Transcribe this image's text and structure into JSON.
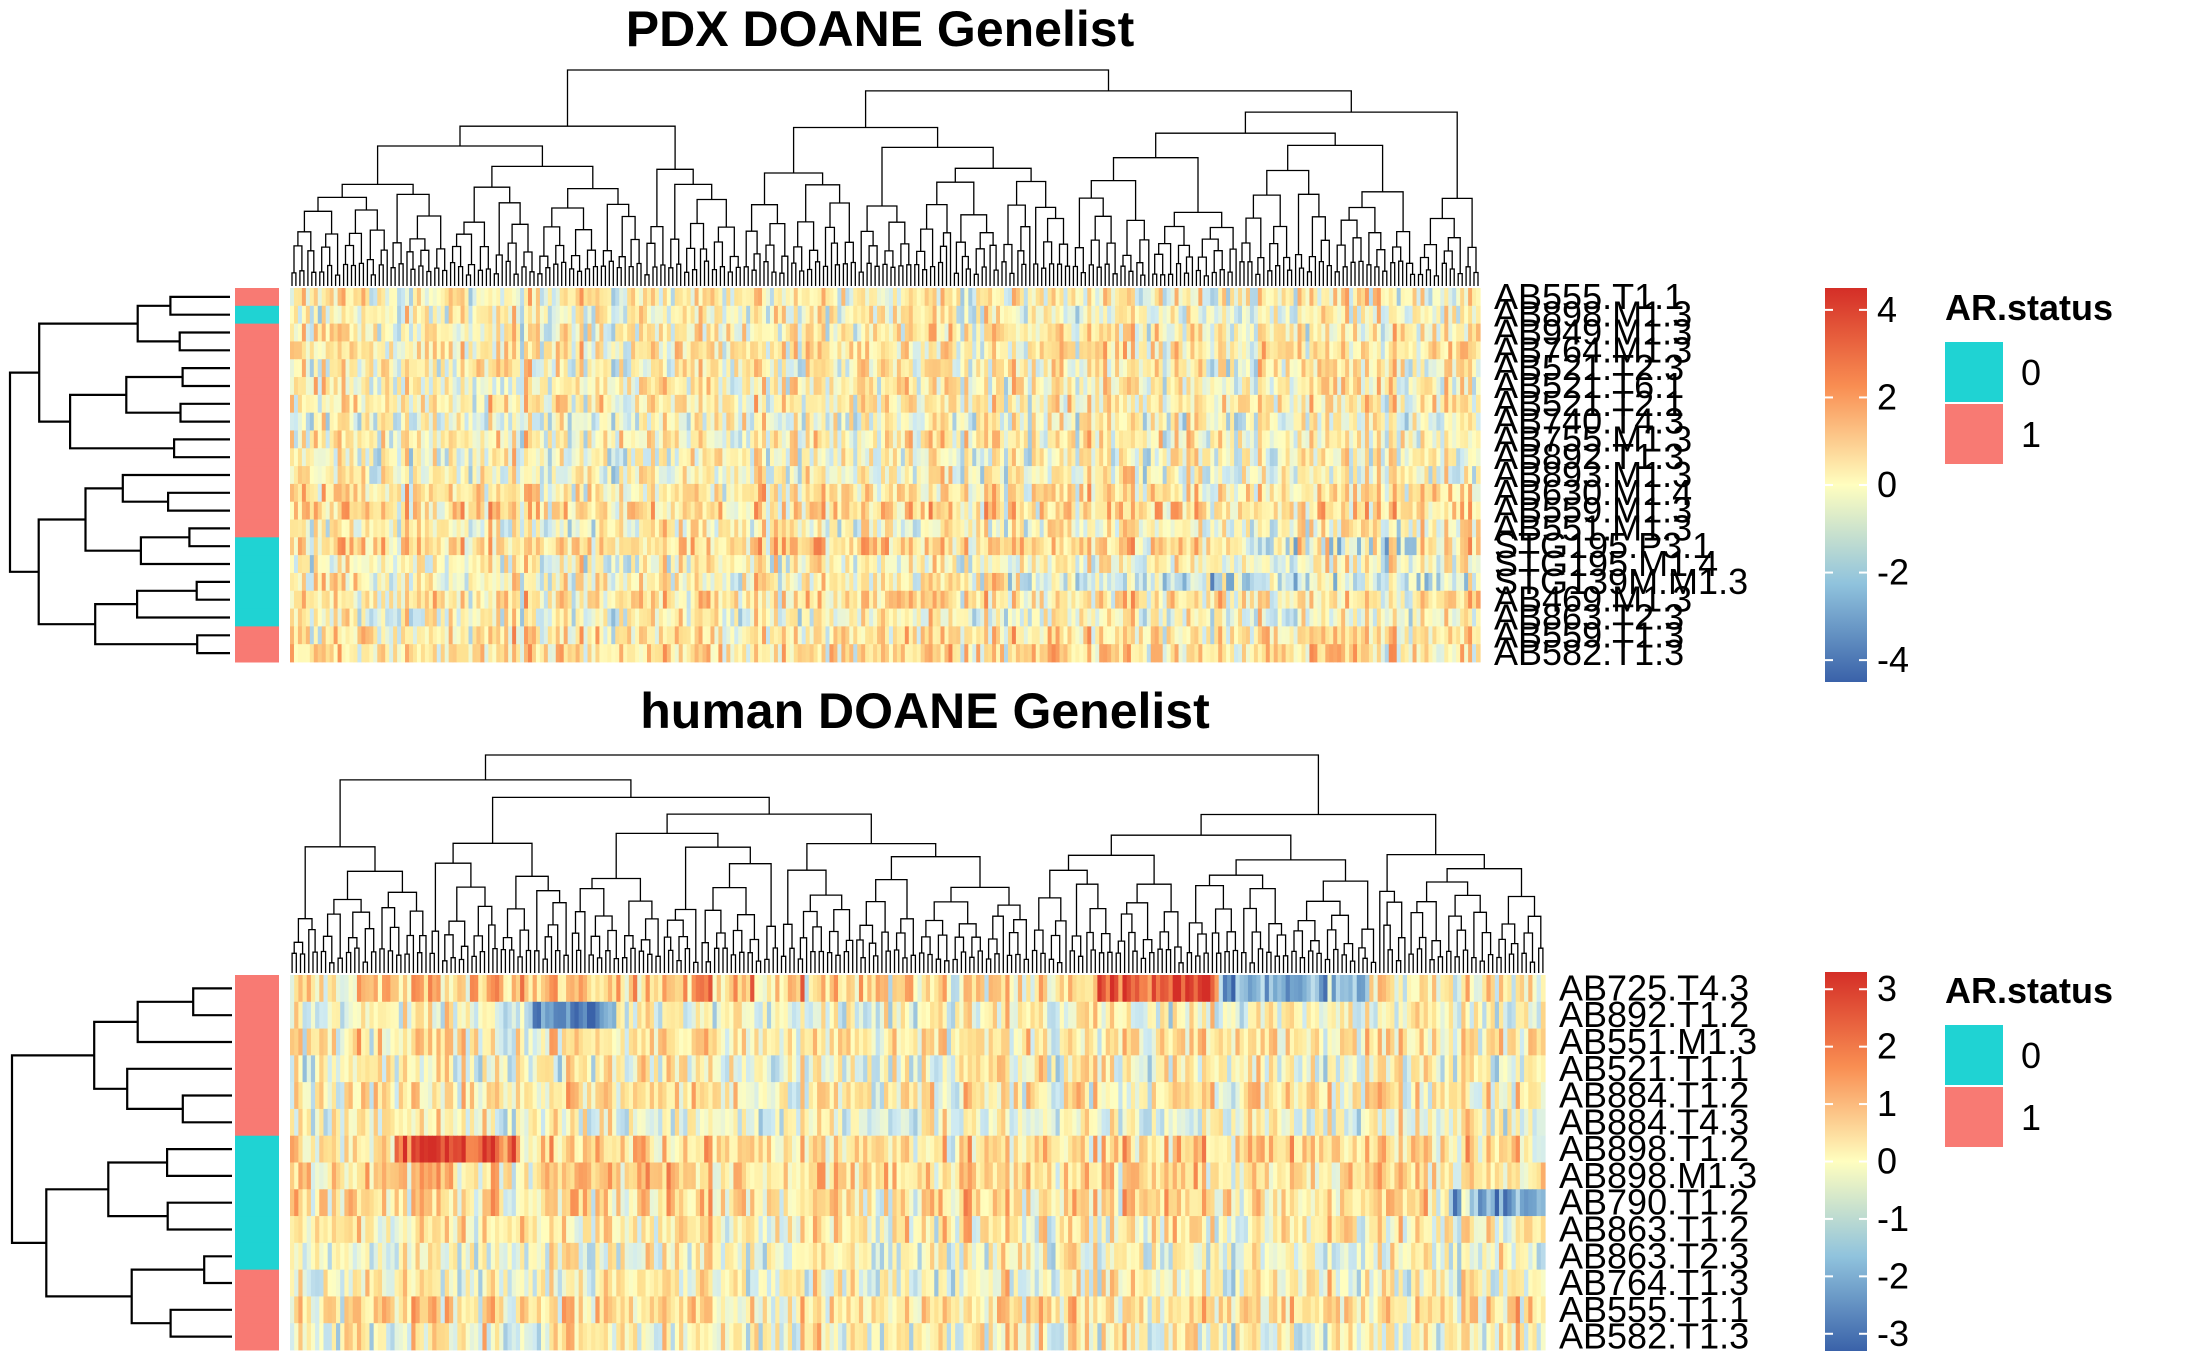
{
  "chart_data": [
    {
      "type": "heatmap",
      "title": "PDX DOANE Genelist",
      "rows": [
        "AB555.T1.1",
        "AB898.M1.3",
        "AB949.M1.3",
        "AB764.M1.3",
        "AB521.T2.3",
        "AB521.T6.1",
        "AB521.T2.1",
        "AB740.T4.3",
        "AB755.M1.3",
        "AB892.T1.3",
        "AB893.M1.3",
        "AB630.M1.4",
        "AB559.M1.3",
        "AB551.M1.3",
        "STG195.P3.1",
        "STG195.M1.4",
        "STG139M.M1.3",
        "AB469.M1.3",
        "AB863.T2.3",
        "AB559.T1.3",
        "AB582.T1.3"
      ],
      "row_annotation": {
        "name": "AR.status",
        "values": [
          1,
          0,
          1,
          1,
          1,
          1,
          1,
          1,
          1,
          1,
          1,
          1,
          1,
          1,
          0,
          0,
          0,
          0,
          0,
          1,
          1
        ]
      },
      "value_range": [
        -4.5,
        4.5
      ],
      "colorbar_ticks": [
        4,
        2,
        0,
        -2,
        -4
      ],
      "legend": {
        "title": "AR.status",
        "items": [
          "0",
          "1"
        ],
        "colors": [
          "#1fd3d3",
          "#f87a73"
        ]
      }
    },
    {
      "type": "heatmap",
      "title": "human DOANE Genelist",
      "rows": [
        "AB725.T4.3",
        "AB892.T1.2",
        "AB551.M1.3",
        "AB521.T1.1",
        "AB884.T1.2",
        "AB884.T4.3",
        "AB898.T1.2",
        "AB898.M1.3",
        "AB790.T1.2",
        "AB863.T1.2",
        "AB863.T2.3",
        "AB764.T1.3",
        "AB555.T1.1",
        "AB582.T1.3"
      ],
      "row_annotation": {
        "name": "AR.status",
        "values": [
          1,
          1,
          1,
          1,
          1,
          1,
          0,
          0,
          0,
          0,
          0,
          1,
          1,
          1
        ]
      },
      "value_range": [
        -3.3,
        3.3
      ],
      "colorbar_ticks": [
        3,
        2,
        1,
        0,
        -1,
        -2,
        -3
      ],
      "legend": {
        "title": "AR.status",
        "items": [
          "0",
          "1"
        ],
        "colors": [
          "#1fd3d3",
          "#f87a73"
        ]
      }
    }
  ],
  "colors": {
    "ar_0": "#1fd3d3",
    "ar_1": "#f87a73",
    "scale_low": "#3a62a9",
    "scale_mid": "#fffebf",
    "scale_high": "#d42e27"
  }
}
